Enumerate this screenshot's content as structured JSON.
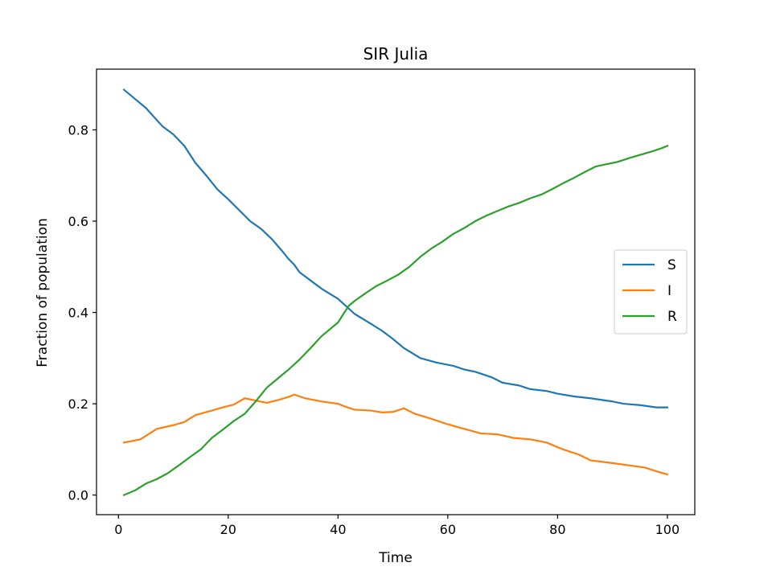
{
  "chart_data": {
    "type": "line",
    "title": "SIR Julia",
    "xlabel": "Time",
    "ylabel": "Fraction of population",
    "xlim": [
      -4,
      105
    ],
    "ylim": [
      -0.043,
      0.933
    ],
    "xticks": [
      0,
      20,
      40,
      60,
      80,
      100
    ],
    "yticks": [
      0.0,
      0.2,
      0.4,
      0.6,
      0.8
    ],
    "xtick_labels": [
      "0",
      "20",
      "40",
      "60",
      "80",
      "100"
    ],
    "ytick_labels": [
      "0.0",
      "0.2",
      "0.4",
      "0.6",
      "0.8"
    ],
    "grid": false,
    "legend_position": "center-right",
    "series": [
      {
        "name": "S",
        "color": "#1f77b4",
        "points": [
          [
            1,
            0.888
          ],
          [
            5,
            0.848
          ],
          [
            8,
            0.808
          ],
          [
            10,
            0.79
          ],
          [
            12,
            0.765
          ],
          [
            14,
            0.728
          ],
          [
            16,
            0.7
          ],
          [
            18,
            0.67
          ],
          [
            20,
            0.648
          ],
          [
            22,
            0.624
          ],
          [
            24,
            0.6
          ],
          [
            26,
            0.583
          ],
          [
            28,
            0.56
          ],
          [
            30,
            0.532
          ],
          [
            31,
            0.517
          ],
          [
            32,
            0.505
          ],
          [
            33,
            0.488
          ],
          [
            35,
            0.47
          ],
          [
            37,
            0.452
          ],
          [
            40,
            0.43
          ],
          [
            43,
            0.397
          ],
          [
            46,
            0.375
          ],
          [
            48,
            0.36
          ],
          [
            50,
            0.342
          ],
          [
            52,
            0.322
          ],
          [
            55,
            0.3
          ],
          [
            58,
            0.29
          ],
          [
            61,
            0.283
          ],
          [
            63,
            0.275
          ],
          [
            65,
            0.27
          ],
          [
            68,
            0.258
          ],
          [
            70,
            0.246
          ],
          [
            73,
            0.24
          ],
          [
            75,
            0.232
          ],
          [
            78,
            0.228
          ],
          [
            80,
            0.222
          ],
          [
            83,
            0.216
          ],
          [
            86,
            0.212
          ],
          [
            90,
            0.205
          ],
          [
            92,
            0.2
          ],
          [
            95,
            0.197
          ],
          [
            98,
            0.192
          ],
          [
            100,
            0.192
          ]
        ]
      },
      {
        "name": "I",
        "color": "#ff7f0e",
        "points": [
          [
            1,
            0.115
          ],
          [
            4,
            0.122
          ],
          [
            7,
            0.145
          ],
          [
            10,
            0.153
          ],
          [
            12,
            0.16
          ],
          [
            14,
            0.175
          ],
          [
            17,
            0.185
          ],
          [
            19,
            0.192
          ],
          [
            21,
            0.198
          ],
          [
            23,
            0.212
          ],
          [
            25,
            0.207
          ],
          [
            27,
            0.202
          ],
          [
            29,
            0.208
          ],
          [
            31,
            0.215
          ],
          [
            32,
            0.22
          ],
          [
            34,
            0.212
          ],
          [
            37,
            0.205
          ],
          [
            40,
            0.2
          ],
          [
            41,
            0.195
          ],
          [
            43,
            0.187
          ],
          [
            46,
            0.185
          ],
          [
            48,
            0.181
          ],
          [
            50,
            0.182
          ],
          [
            52,
            0.19
          ],
          [
            54,
            0.178
          ],
          [
            57,
            0.167
          ],
          [
            60,
            0.155
          ],
          [
            63,
            0.145
          ],
          [
            66,
            0.135
          ],
          [
            69,
            0.133
          ],
          [
            72,
            0.125
          ],
          [
            75,
            0.122
          ],
          [
            78,
            0.115
          ],
          [
            81,
            0.1
          ],
          [
            84,
            0.088
          ],
          [
            86,
            0.076
          ],
          [
            90,
            0.07
          ],
          [
            93,
            0.065
          ],
          [
            96,
            0.06
          ],
          [
            98,
            0.052
          ],
          [
            100,
            0.045
          ]
        ]
      },
      {
        "name": "R",
        "color": "#2ca02c",
        "points": [
          [
            1,
            0.0
          ],
          [
            3,
            0.01
          ],
          [
            5,
            0.025
          ],
          [
            7,
            0.035
          ],
          [
            9,
            0.048
          ],
          [
            11,
            0.065
          ],
          [
            13,
            0.083
          ],
          [
            15,
            0.1
          ],
          [
            17,
            0.125
          ],
          [
            19,
            0.143
          ],
          [
            21,
            0.162
          ],
          [
            23,
            0.178
          ],
          [
            25,
            0.205
          ],
          [
            27,
            0.235
          ],
          [
            29,
            0.255
          ],
          [
            31,
            0.275
          ],
          [
            33,
            0.297
          ],
          [
            35,
            0.322
          ],
          [
            37,
            0.348
          ],
          [
            39,
            0.368
          ],
          [
            40,
            0.378
          ],
          [
            41,
            0.397
          ],
          [
            42,
            0.415
          ],
          [
            43,
            0.425
          ],
          [
            45,
            0.442
          ],
          [
            47,
            0.458
          ],
          [
            49,
            0.47
          ],
          [
            51,
            0.483
          ],
          [
            53,
            0.5
          ],
          [
            55,
            0.522
          ],
          [
            57,
            0.54
          ],
          [
            59,
            0.555
          ],
          [
            61,
            0.572
          ],
          [
            63,
            0.585
          ],
          [
            65,
            0.6
          ],
          [
            67,
            0.612
          ],
          [
            69,
            0.622
          ],
          [
            71,
            0.632
          ],
          [
            73,
            0.64
          ],
          [
            75,
            0.65
          ],
          [
            77,
            0.658
          ],
          [
            79,
            0.67
          ],
          [
            81,
            0.683
          ],
          [
            83,
            0.695
          ],
          [
            85,
            0.708
          ],
          [
            87,
            0.72
          ],
          [
            89,
            0.725
          ],
          [
            91,
            0.73
          ],
          [
            93,
            0.738
          ],
          [
            95,
            0.745
          ],
          [
            97,
            0.752
          ],
          [
            99,
            0.76
          ],
          [
            100,
            0.765
          ]
        ]
      }
    ]
  }
}
